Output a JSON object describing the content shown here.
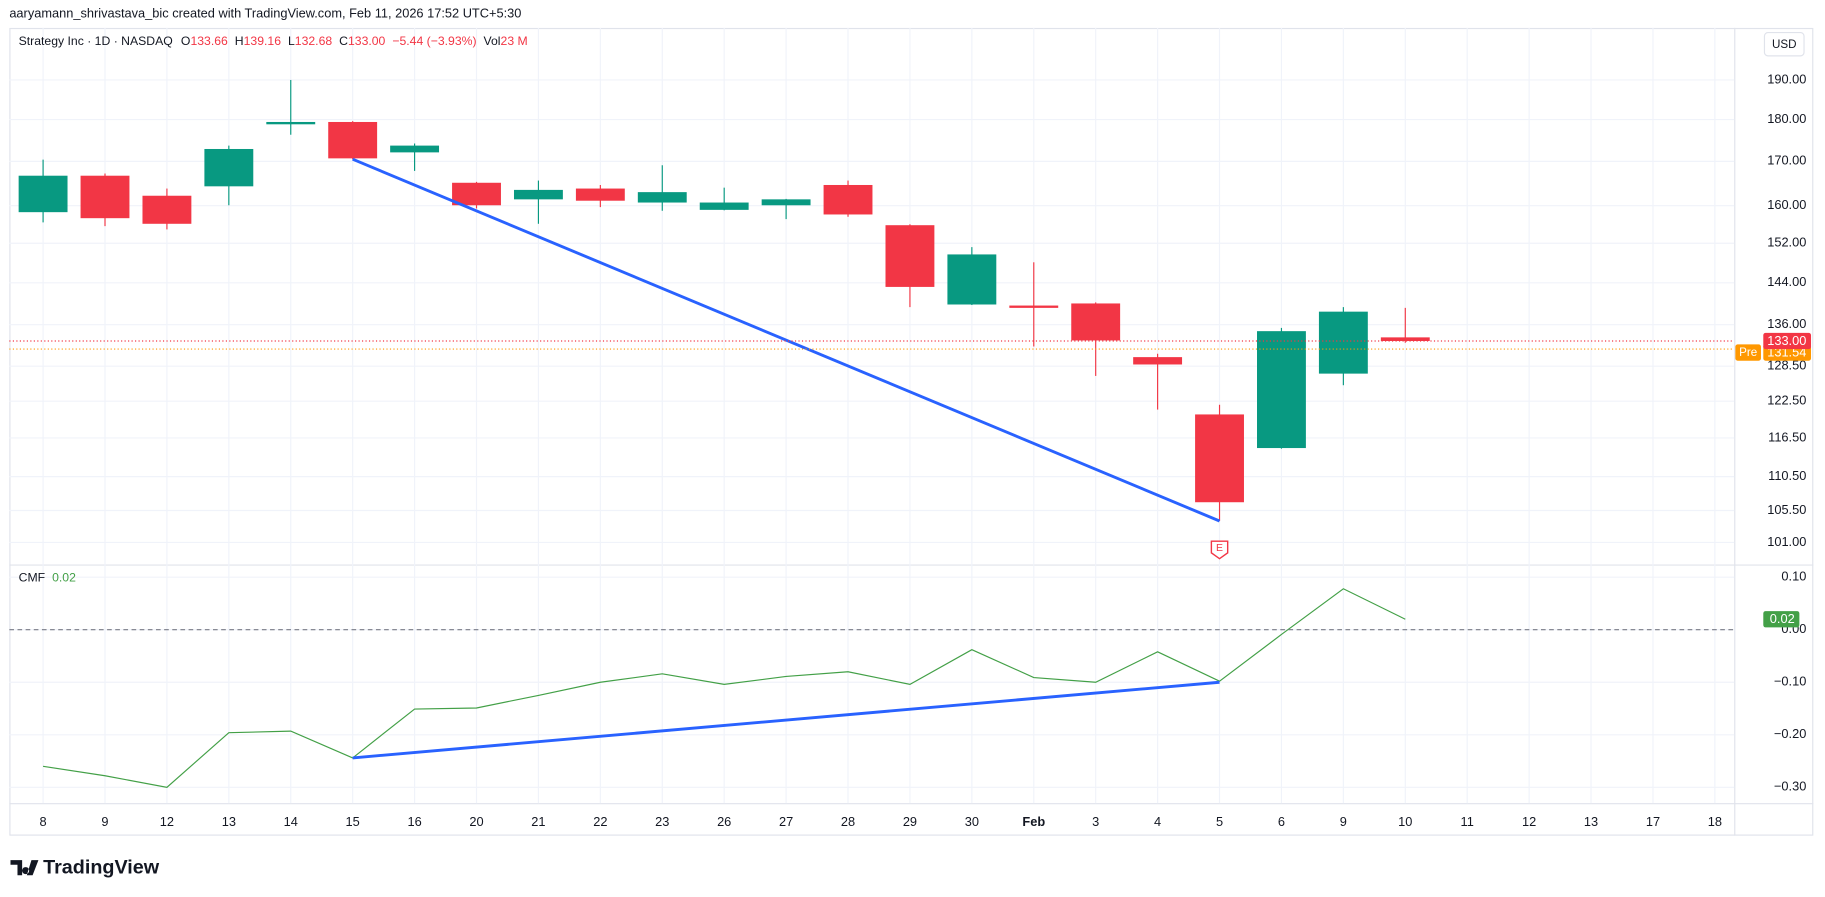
{
  "header": "aaryamann_shrivastava_bic created with TradingView.com, Feb 11, 2026 17:52 UTC+5:30",
  "currency": "USD",
  "footer": "TradingView",
  "chart_data": [
    {
      "type": "candlestick",
      "title": "Strategy Inc · 1D · NASDAQ",
      "legend": [
        {
          "label": "O",
          "value": "133.66"
        },
        {
          "label": "H",
          "value": "139.16"
        },
        {
          "label": "L",
          "value": "132.68"
        },
        {
          "label": "C",
          "value": "133.00"
        }
      ],
      "change": "−5.44 (−3.93%)",
      "volume": {
        "label": "Vol",
        "value": "23 M"
      },
      "categories": [
        "8",
        "9",
        "12",
        "13",
        "14",
        "15",
        "16",
        "20",
        "21",
        "22",
        "23",
        "26",
        "27",
        "28",
        "29",
        "30",
        "Feb",
        "3",
        "4",
        "5",
        "6",
        "9",
        "10",
        "11",
        "12",
        "13",
        "17",
        "18"
      ],
      "open": [
        158.6,
        166.7,
        162.2,
        164.3,
        179.1,
        179.4,
        172.1,
        165.1,
        161.4,
        163.8,
        160.7,
        159.1,
        160.1,
        164.6,
        155.8,
        139.8,
        139.6,
        140.0,
        130.1,
        120.3,
        114.9,
        127.2,
        133.66,
        null,
        null,
        null,
        null,
        null
      ],
      "high": [
        170.4,
        167.2,
        163.8,
        173.7,
        190.0,
        179.6,
        174.2,
        165.3,
        165.6,
        164.6,
        169.1,
        164.0,
        161.5,
        165.6,
        156.0,
        151.2,
        148.1,
        140.2,
        130.7,
        121.9,
        135.4,
        139.3,
        139.16,
        null,
        null,
        null,
        null,
        null
      ],
      "low": [
        156.4,
        155.6,
        154.9,
        160.1,
        176.3,
        170.5,
        167.8,
        159.4,
        156.1,
        159.7,
        158.9,
        159.0,
        157.1,
        157.6,
        139.3,
        139.7,
        132.0,
        126.8,
        121.1,
        104.0,
        114.8,
        125.2,
        132.68,
        null,
        null,
        null,
        null,
        null
      ],
      "close": [
        166.7,
        157.3,
        156.1,
        172.9,
        179.4,
        170.7,
        173.7,
        160.1,
        163.5,
        161.1,
        163.0,
        160.7,
        161.4,
        158.1,
        143.2,
        149.7,
        139.4,
        133.1,
        128.8,
        106.7,
        134.8,
        138.44,
        133.0,
        null,
        null,
        null,
        null,
        null
      ],
      "up_color": "#089981",
      "down_color": "#f23645",
      "log_scale": true,
      "grid": true,
      "ylim": [
        98,
        204
      ],
      "yticks": [
        {
          "value": 190,
          "label": "190.00"
        },
        {
          "value": 180,
          "label": "180.00"
        },
        {
          "value": 170,
          "label": "170.00"
        },
        {
          "value": 160,
          "label": "160.00"
        },
        {
          "value": 152,
          "label": "152.00"
        },
        {
          "value": 144,
          "label": "144.00"
        },
        {
          "value": 136,
          "label": "136.00"
        },
        {
          "value": 128.5,
          "label": "128.50"
        },
        {
          "value": 122.5,
          "label": "122.50"
        },
        {
          "value": 116.5,
          "label": "116.50"
        },
        {
          "value": 110.5,
          "label": "110.50"
        },
        {
          "value": 105.5,
          "label": "105.50"
        },
        {
          "value": 101,
          "label": "101.00"
        }
      ],
      "last_price": {
        "value": 133,
        "label": "133.00",
        "color": "#f23645"
      },
      "pre_market": {
        "name": "Pre",
        "value": 131.54,
        "label": "131.54",
        "color": "#ff9800"
      },
      "trendline": {
        "color": "#2962ff",
        "x": [
          "15",
          "5"
        ],
        "values": [
          170.5,
          104
        ]
      },
      "events": [
        {
          "x": "5",
          "label": "E",
          "color": "#f23645"
        }
      ]
    },
    {
      "type": "line",
      "title": "CMF",
      "value_label": "0.02",
      "color": "#43a047",
      "values": [
        -0.26,
        -0.278,
        -0.3,
        -0.196,
        -0.193,
        -0.244,
        -0.151,
        -0.149,
        -0.125,
        -0.1,
        -0.084,
        -0.104,
        -0.089,
        -0.08,
        -0.104,
        -0.038,
        -0.091,
        -0.1,
        -0.042,
        -0.098,
        -0.009,
        0.078,
        0.02,
        null,
        null,
        null,
        null,
        null
      ],
      "ylim": [
        -0.33,
        0.122
      ],
      "yticks": [
        {
          "value": 0.1,
          "label": "0.10"
        },
        {
          "value": 0,
          "label": "0.00"
        },
        {
          "value": -0.1,
          "label": "−0.10"
        },
        {
          "value": -0.2,
          "label": "−0.20"
        },
        {
          "value": -0.3,
          "label": "−0.30"
        }
      ],
      "zero_line": true,
      "trendline": {
        "color": "#2962ff",
        "x": [
          "15",
          "5"
        ],
        "values": [
          -0.244,
          -0.1
        ]
      }
    }
  ]
}
